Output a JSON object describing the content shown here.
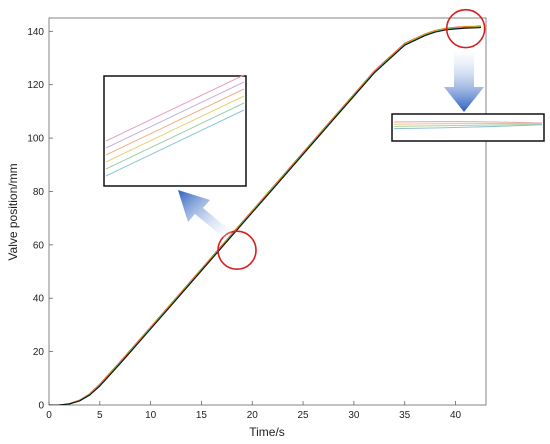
{
  "chart_data": {
    "type": "line",
    "title": "",
    "xlabel": "Time/s",
    "ylabel": "Valve position/mm",
    "xlim": [
      0,
      43
    ],
    "ylim": [
      0,
      145
    ],
    "xticks": [
      0,
      5,
      10,
      15,
      20,
      25,
      30,
      35,
      40
    ],
    "yticks": [
      0,
      20,
      40,
      60,
      80,
      100,
      120,
      140
    ],
    "grid": false,
    "legend": "none",
    "x": [
      0,
      1,
      2,
      3,
      4,
      5,
      6,
      7,
      8,
      10,
      12,
      15,
      18,
      20,
      22,
      25,
      28,
      30,
      32,
      35,
      37,
      38,
      39,
      40,
      41,
      42,
      42.5
    ],
    "series": [
      {
        "color": "#e41a1c",
        "values": [
          0,
          0,
          0.5,
          1.8,
          4.2,
          7.8,
          12.0,
          16.2,
          20.5,
          29.2,
          37.9,
          51.0,
          64.1,
          72.8,
          81.5,
          94.6,
          107.7,
          116.4,
          125.1,
          135.5,
          139.0,
          140.3,
          141.1,
          141.5,
          141.8,
          141.9,
          142.0
        ]
      },
      {
        "color": "#ff7f0e",
        "values": [
          0,
          0,
          0.5,
          1.7,
          4.1,
          7.6,
          11.8,
          16.0,
          20.3,
          29.0,
          37.7,
          50.8,
          63.9,
          72.6,
          81.3,
          94.4,
          107.5,
          116.2,
          124.9,
          135.3,
          138.9,
          140.2,
          141.0,
          141.4,
          141.7,
          141.8,
          141.9
        ]
      },
      {
        "color": "#d9c400",
        "values": [
          0,
          0,
          0.4,
          1.7,
          4.0,
          7.5,
          11.7,
          15.9,
          20.2,
          28.9,
          37.6,
          50.7,
          63.8,
          72.5,
          81.2,
          94.3,
          107.4,
          116.1,
          124.8,
          135.2,
          138.8,
          140.1,
          140.9,
          141.3,
          141.6,
          141.7,
          141.8
        ]
      },
      {
        "color": "#2ca02c",
        "values": [
          0,
          0,
          0.4,
          1.6,
          3.9,
          7.3,
          11.5,
          15.7,
          20.0,
          28.7,
          37.4,
          50.5,
          63.6,
          72.3,
          81.0,
          94.1,
          107.2,
          115.9,
          124.6,
          135.0,
          138.6,
          139.9,
          140.7,
          141.1,
          141.4,
          141.5,
          141.6
        ]
      },
      {
        "color": "#1f9fb4",
        "values": [
          0,
          0,
          0.4,
          1.6,
          3.8,
          7.2,
          11.4,
          15.6,
          19.9,
          28.6,
          37.3,
          50.4,
          63.5,
          72.2,
          80.9,
          94.0,
          107.1,
          115.8,
          124.5,
          134.9,
          138.5,
          139.8,
          140.6,
          141.0,
          141.3,
          141.4,
          141.5
        ]
      },
      {
        "color": "#111111",
        "values": [
          0,
          0,
          0.4,
          1.5,
          3.7,
          7.1,
          11.3,
          15.5,
          19.8,
          28.5,
          37.2,
          50.3,
          63.4,
          72.1,
          80.8,
          93.9,
          107.0,
          115.7,
          124.4,
          134.8,
          138.4,
          139.7,
          140.5,
          140.9,
          141.2,
          141.3,
          141.4
        ]
      }
    ],
    "annotations": [
      {
        "kind": "circle",
        "x": 18.5,
        "y": 58
      },
      {
        "kind": "circle",
        "x": 41,
        "y": 141
      }
    ],
    "inset_upper_left": {
      "series_colors": [
        "#e7a0c8",
        "#c8b0e0",
        "#f3b08a",
        "#e6d27a",
        "#9ad0a8",
        "#88c8d8"
      ]
    },
    "inset_right": {
      "series_colors": [
        "#e9a3a3",
        "#e6c98a",
        "#a9d3a0",
        "#8fbfd6"
      ]
    }
  }
}
